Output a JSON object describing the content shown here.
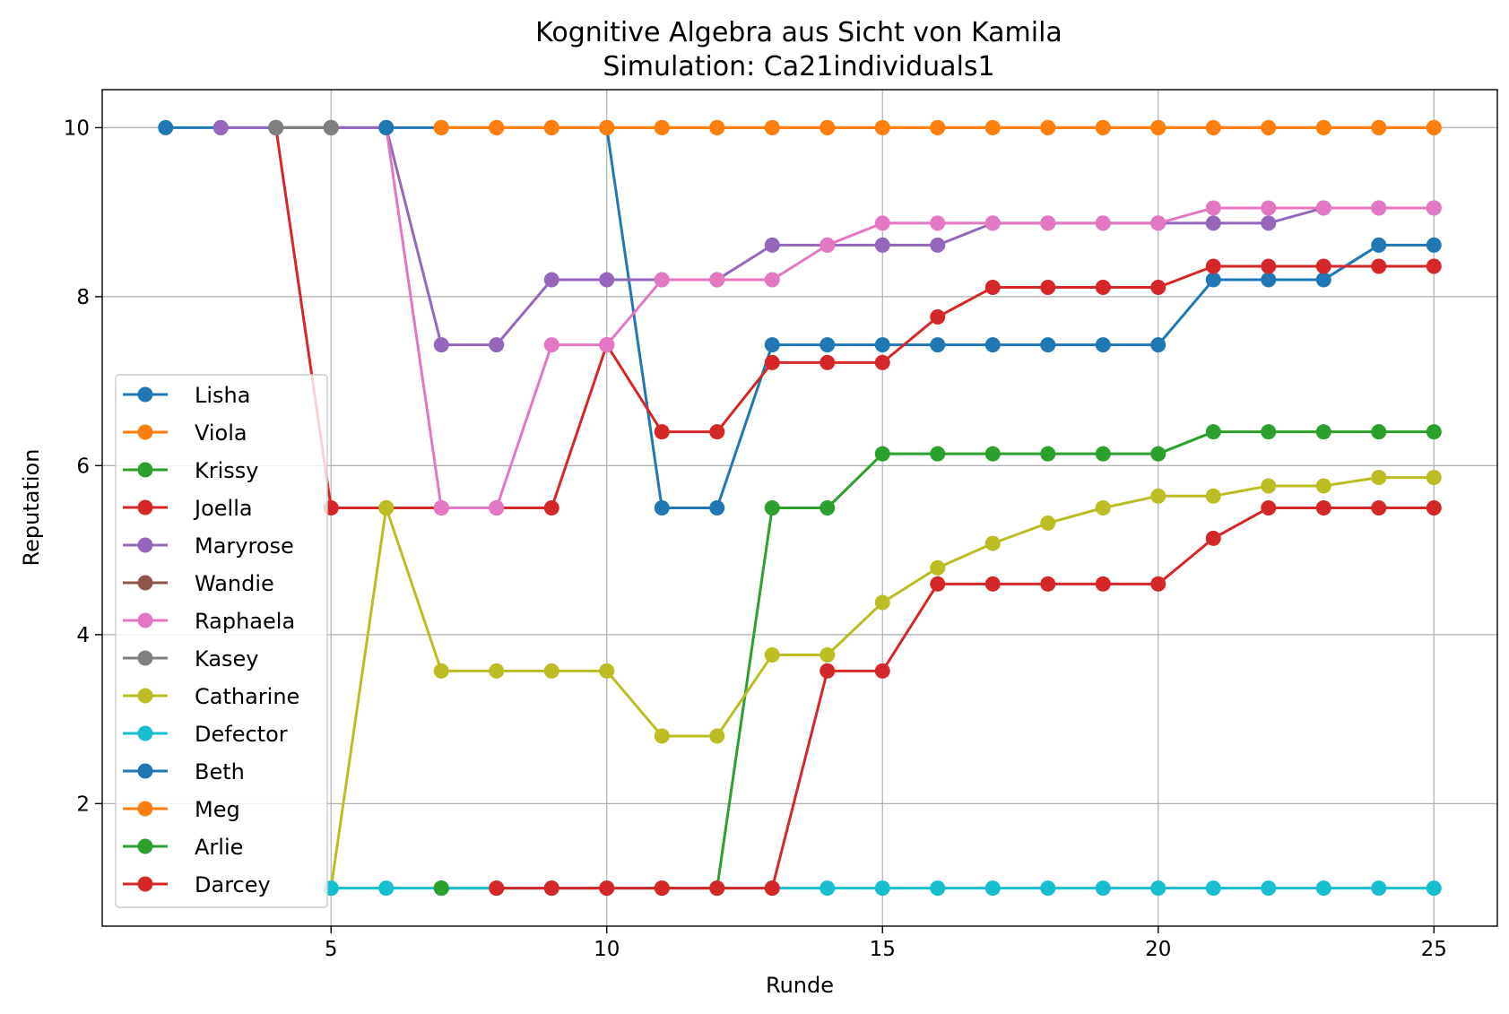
{
  "chart_data": {
    "type": "line",
    "title": "Kognitive Algebra aus Sicht von Kamila",
    "subtitle": "Simulation: Ca21individuals1",
    "xlabel": "Runde",
    "ylabel": "Reputation",
    "xlim": [
      0.85,
      26.15
    ],
    "ylim": [
      0.55,
      10.45
    ],
    "xticks": [
      5,
      10,
      15,
      20,
      25
    ],
    "yticks": [
      2,
      4,
      6,
      8,
      10
    ],
    "grid": true,
    "legend_position": "lower-left",
    "series": [
      {
        "name": "Lisha",
        "color": "#1f77b4",
        "x": [
          2,
          3,
          4,
          5,
          6,
          7,
          8,
          9,
          10,
          11,
          12,
          13,
          14,
          15,
          16,
          17,
          18,
          19,
          20,
          21,
          22,
          23,
          24,
          25
        ],
        "y": [
          10,
          10,
          10,
          10,
          10,
          10,
          10,
          10,
          10,
          5.5,
          5.5,
          7.43,
          7.43,
          7.43,
          7.43,
          7.43,
          7.43,
          7.43,
          7.43,
          8.2,
          8.2,
          8.2,
          8.61,
          8.61
        ]
      },
      {
        "name": "Viola",
        "color": "#ff7f0e",
        "x": [
          7,
          8,
          9,
          10,
          11,
          12,
          13,
          14,
          15,
          16,
          17,
          18,
          19,
          20,
          21,
          22,
          23,
          24,
          25
        ],
        "y": [
          10,
          10,
          10,
          10,
          10,
          10,
          10,
          10,
          10,
          10,
          10,
          10,
          10,
          10,
          10,
          10,
          10,
          10,
          10
        ]
      },
      {
        "name": "Krissy",
        "color": "#2ca02c",
        "x": [
          7,
          8,
          9,
          10,
          11,
          12,
          13,
          14,
          15,
          16,
          17,
          18,
          19,
          20,
          21,
          22,
          23,
          24,
          25
        ],
        "y": [
          1,
          1,
          1,
          1,
          1,
          1,
          5.5,
          5.5,
          6.14,
          6.14,
          6.14,
          6.14,
          6.14,
          6.14,
          6.4,
          6.4,
          6.4,
          6.4,
          6.4
        ]
      },
      {
        "name": "Joella",
        "color": "#d62728",
        "x": [
          4,
          5,
          6,
          7,
          8,
          9,
          10,
          11,
          12,
          13,
          14,
          15,
          16,
          17,
          18,
          19,
          20,
          21,
          22,
          23,
          24,
          25
        ],
        "y": [
          10,
          5.5,
          5.5,
          5.5,
          5.5,
          5.5,
          7.43,
          6.4,
          6.4,
          7.22,
          7.22,
          7.22,
          7.76,
          8.11,
          8.11,
          8.11,
          8.11,
          8.36,
          8.36,
          8.36,
          8.36,
          8.36
        ]
      },
      {
        "name": "Maryrose",
        "color": "#9467bd",
        "x": [
          3,
          4,
          5,
          6,
          7,
          8,
          9,
          10,
          11,
          12,
          13,
          14,
          15,
          16,
          17,
          18,
          19,
          20,
          21,
          22,
          23,
          24,
          25
        ],
        "y": [
          10,
          10,
          10,
          10,
          7.43,
          7.43,
          8.2,
          8.2,
          8.2,
          8.2,
          8.61,
          8.61,
          8.61,
          8.61,
          8.87,
          8.87,
          8.87,
          8.87,
          8.87,
          8.87,
          9.05,
          9.05,
          9.05
        ]
      },
      {
        "name": "Wandie",
        "color": "#8c564b",
        "x": [
          4,
          5
        ],
        "y": [
          10,
          10
        ]
      },
      {
        "name": "Raphaela",
        "color": "#e377c2",
        "x": [
          6,
          7,
          8,
          9,
          10,
          11,
          12,
          13,
          14,
          15,
          16,
          17,
          18,
          19,
          20,
          21,
          22,
          23,
          24,
          25
        ],
        "y": [
          10,
          5.5,
          5.5,
          7.43,
          7.43,
          8.2,
          8.2,
          8.2,
          8.61,
          8.87,
          8.87,
          8.87,
          8.87,
          8.87,
          8.87,
          9.05,
          9.05,
          9.05,
          9.05,
          9.05
        ]
      },
      {
        "name": "Kasey",
        "color": "#7f7f7f",
        "x": [
          4,
          5
        ],
        "y": [
          10,
          10
        ]
      },
      {
        "name": "Catharine",
        "color": "#bcbd22",
        "x": [
          5,
          6,
          7,
          8,
          9,
          10,
          11,
          12,
          13,
          14,
          15,
          16,
          17,
          18,
          19,
          20,
          21,
          22,
          23,
          24,
          25
        ],
        "y": [
          1,
          5.5,
          3.57,
          3.57,
          3.57,
          3.57,
          2.8,
          2.8,
          3.76,
          3.76,
          4.38,
          4.79,
          5.08,
          5.32,
          5.5,
          5.64,
          5.64,
          5.76,
          5.76,
          5.86,
          5.86
        ]
      },
      {
        "name": "Defector",
        "color": "#17becf",
        "x": [
          5,
          6,
          7,
          8,
          9,
          10,
          11,
          12,
          13,
          14,
          15,
          16,
          17,
          18,
          19,
          20,
          21,
          22,
          23,
          24,
          25
        ],
        "y": [
          1,
          1,
          1,
          1,
          1,
          1,
          1,
          1,
          1,
          1,
          1,
          1,
          1,
          1,
          1,
          1,
          1,
          1,
          1,
          1,
          1
        ]
      },
      {
        "name": "Beth",
        "color": "#1f77b4",
        "x": [
          6
        ],
        "y": [
          10
        ]
      },
      {
        "name": "Meg",
        "color": "#ff7f0e",
        "x": [
          7,
          8,
          9,
          10,
          11,
          12,
          13,
          14,
          15,
          16,
          17,
          18,
          19,
          20,
          21,
          22,
          23,
          24,
          25
        ],
        "y": [
          10,
          10,
          10,
          10,
          10,
          10,
          10,
          10,
          10,
          10,
          10,
          10,
          10,
          10,
          10,
          10,
          10,
          10,
          10
        ]
      },
      {
        "name": "Arlie",
        "color": "#2ca02c",
        "x": [
          7
        ],
        "y": [
          1
        ]
      },
      {
        "name": "Darcey",
        "color": "#d62728",
        "x": [
          8,
          9,
          10,
          11,
          12,
          13,
          14,
          15,
          16,
          17,
          18,
          19,
          20,
          21,
          22,
          23,
          24,
          25
        ],
        "y": [
          1,
          1,
          1,
          1,
          1,
          1,
          3.57,
          3.57,
          4.6,
          4.6,
          4.6,
          4.6,
          4.6,
          5.14,
          5.5,
          5.5,
          5.5,
          5.5
        ]
      }
    ]
  }
}
